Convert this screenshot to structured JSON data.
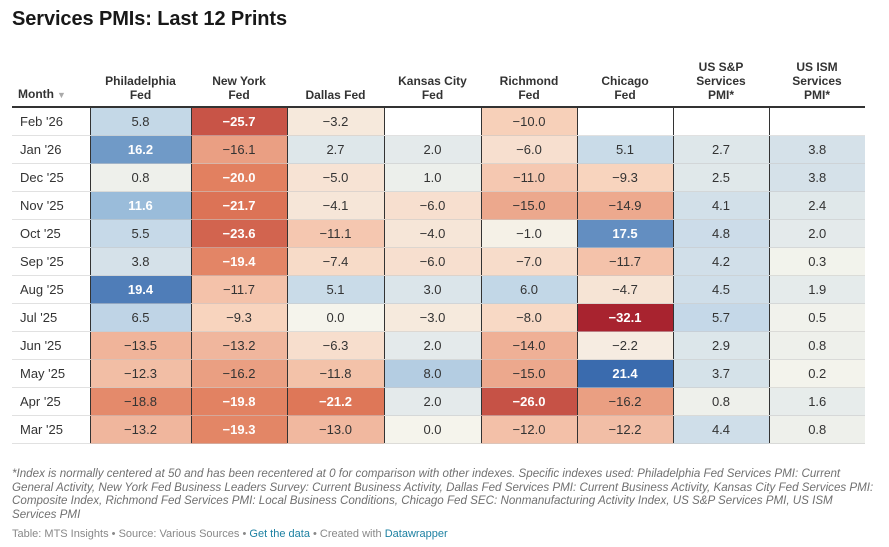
{
  "title": "Services PMIs: Last 12 Prints",
  "table": {
    "month_header": "Month",
    "sort_icon": "▼",
    "columns": [
      {
        "label_lines": [
          "Philadelphia",
          "Fed"
        ]
      },
      {
        "label_lines": [
          "New York",
          "Fed"
        ]
      },
      {
        "label_lines": [
          "Dallas Fed"
        ]
      },
      {
        "label_lines": [
          "Kansas City",
          "Fed"
        ]
      },
      {
        "label_lines": [
          "Richmond",
          "Fed"
        ]
      },
      {
        "label_lines": [
          "Chicago",
          "Fed"
        ]
      },
      {
        "label_lines": [
          "US S&P",
          "Services",
          "PMI*"
        ]
      },
      {
        "label_lines": [
          "US ISM",
          "Services",
          "PMI*"
        ]
      }
    ],
    "color_scale": {
      "neg_strong": "#a8232f",
      "neg_mid": "#e07a59",
      "neg_light": "#f8d3bd",
      "zero": "#f5f4ec",
      "pos_light": "#c6d9e8",
      "pos_mid": "#8fb5d6",
      "pos_strong": "#3466ab"
    }
  },
  "chart_data": {
    "type": "table",
    "title": "Services PMIs: Last 12 Prints",
    "columns": [
      "Month",
      "Philadelphia Fed",
      "New York Fed",
      "Dallas Fed",
      "Kansas City Fed",
      "Richmond Fed",
      "Chicago Fed",
      "US S&P Services PMI*",
      "US ISM Services PMI*"
    ],
    "rows": [
      {
        "month": "Feb '26",
        "values": [
          5.8,
          -25.7,
          -3.2,
          null,
          -10.0,
          null,
          null,
          null
        ]
      },
      {
        "month": "Jan '26",
        "values": [
          16.2,
          -16.1,
          2.7,
          2.0,
          -6.0,
          5.1,
          2.7,
          3.8
        ]
      },
      {
        "month": "Dec '25",
        "values": [
          0.8,
          -20.0,
          -5.0,
          1.0,
          -11.0,
          -9.3,
          2.5,
          3.8
        ]
      },
      {
        "month": "Nov '25",
        "values": [
          11.6,
          -21.7,
          -4.1,
          -6.0,
          -15.0,
          -14.9,
          4.1,
          2.4
        ]
      },
      {
        "month": "Oct '25",
        "values": [
          5.5,
          -23.6,
          -11.1,
          -4.0,
          -1.0,
          17.5,
          4.8,
          2.0
        ]
      },
      {
        "month": "Sep '25",
        "values": [
          3.8,
          -19.4,
          -7.4,
          -6.0,
          -7.0,
          -11.7,
          4.2,
          0.3
        ]
      },
      {
        "month": "Aug '25",
        "values": [
          19.4,
          -11.7,
          5.1,
          3.0,
          6.0,
          -4.7,
          4.5,
          1.9
        ]
      },
      {
        "month": "Jul '25",
        "values": [
          6.5,
          -9.3,
          0.0,
          -3.0,
          -8.0,
          -32.1,
          5.7,
          0.5
        ]
      },
      {
        "month": "Jun '25",
        "values": [
          -13.5,
          -13.2,
          -6.3,
          2.0,
          -14.0,
          -2.2,
          2.9,
          0.8
        ]
      },
      {
        "month": "May '25",
        "values": [
          -12.3,
          -16.2,
          -11.8,
          8.0,
          -15.0,
          21.4,
          3.7,
          0.2
        ]
      },
      {
        "month": "Apr '25",
        "values": [
          -18.8,
          -19.8,
          -21.2,
          2.0,
          -26.0,
          -16.2,
          0.8,
          1.6
        ]
      },
      {
        "month": "Mar '25",
        "values": [
          -13.2,
          -19.3,
          -13.0,
          0.0,
          -12.0,
          -12.2,
          4.4,
          0.8
        ]
      }
    ],
    "sort": {
      "column": "Month",
      "direction": "descending"
    }
  },
  "notes": "*Index is normally centered at 50 and has been recentered at 0 for comparison with other indexes. Specific indexes used: Philadelphia Fed Services PMI: Current General Activity, New York Fed Business Leaders Survey: Current Business Activity, Dallas Fed Services PMI: Current Business Activity, Kansas City Fed Services PMI: Composite Index, Richmond Fed Services PMI: Local Business Conditions, Chicago Fed SEC: Nonmanufacturing Activity Index, US S&P Services PMI, US ISM Services PMI",
  "footer": {
    "table_credit": "Table: MTS Insights",
    "separator": " • ",
    "source": "Source: Various Sources",
    "get_data_link": "Get the data",
    "created_with": "Created with ",
    "datawrapper_link": "Datawrapper"
  }
}
